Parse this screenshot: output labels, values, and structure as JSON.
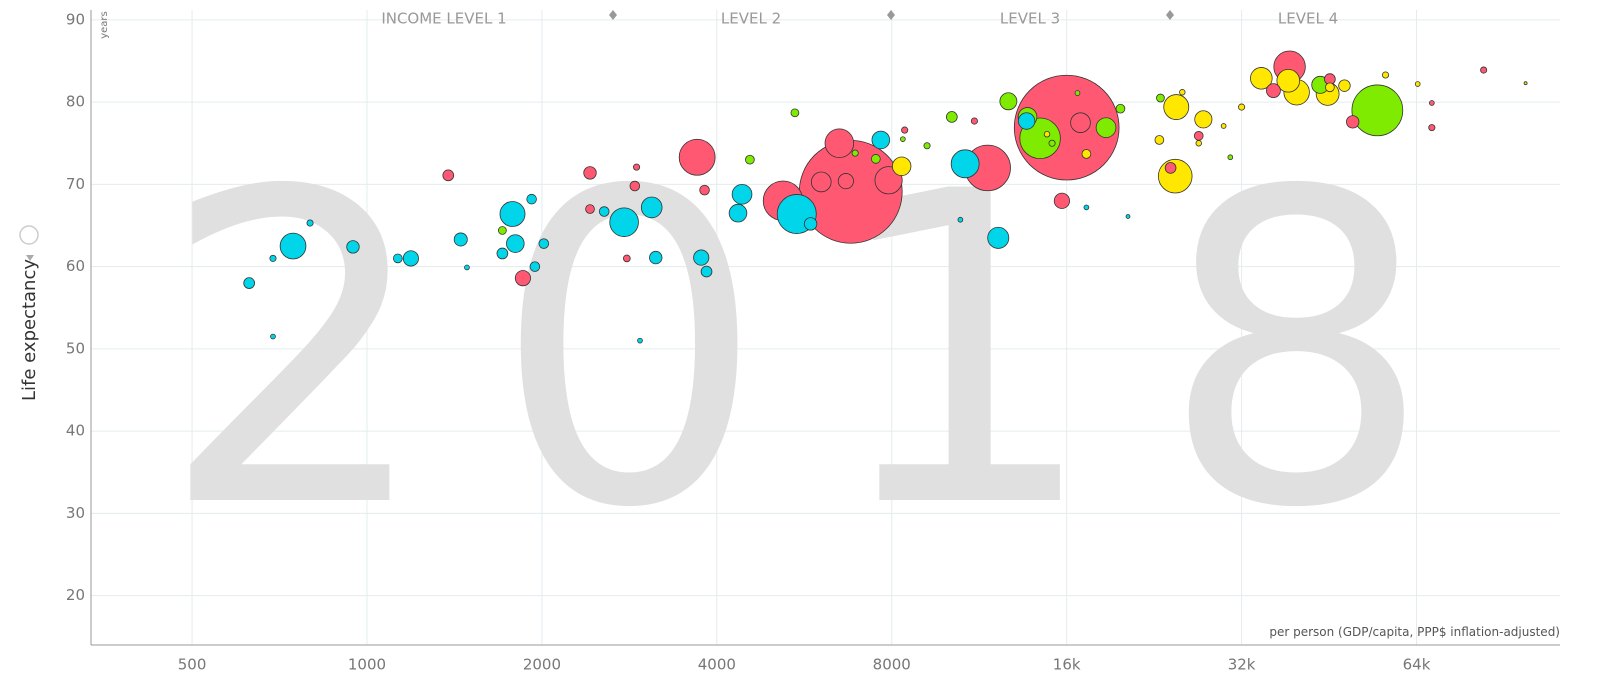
{
  "chart_data": {
    "type": "bubble",
    "big_label": "2018",
    "y_axis_label": "Life expectancy",
    "y_unit": "years",
    "x_axis_label": "per person (GDP/capita, PPP$ inflation-adjusted)",
    "annotations": [
      "INCOME LEVEL 1",
      "LEVEL 2",
      "LEVEL 3",
      "LEVEL 4"
    ],
    "x_log": true,
    "grid": true,
    "xlim": [
      335,
      113000
    ],
    "ylim": [
      14,
      91.2
    ],
    "xticks": [
      500,
      1000,
      2000,
      4000,
      8000,
      {
        "value": 16000,
        "label": "16k"
      },
      {
        "value": 32000,
        "label": "32k"
      },
      {
        "value": 64000,
        "label": "64k"
      }
    ],
    "yticks": [
      20,
      30,
      40,
      50,
      60,
      70,
      80,
      90
    ],
    "series": [
      {
        "color": "#ff5872",
        "x": [
          16000,
          6800,
          11700,
          5200,
          3700,
          6500,
          38700,
          7900,
          6050,
          6670,
          16900,
          36300,
          49700,
          45400,
          15700,
          1855,
          2420,
          1380,
          3810,
          2890,
          24150,
          27000,
          2420,
          2800,
          2910,
          68000,
          83500,
          11100,
          8420,
          68000
        ],
        "values": [
          76.9,
          69.1,
          72.0,
          68.0,
          73.3,
          75.0,
          84.3,
          70.5,
          70.3,
          70.4,
          77.5,
          81.4,
          77.6,
          82.8,
          68.0,
          58.6,
          71.4,
          71.1,
          69.3,
          69.8,
          72.0,
          75.9,
          67.0,
          61.0,
          72.1,
          76.9,
          83.9,
          77.7,
          76.6,
          79.9
        ],
        "sizes": [
          1400,
          1350,
          265,
          200,
          165,
          105,
          127,
          95,
          50,
          30,
          50,
          25,
          20,
          15,
          30,
          30,
          20,
          15,
          12,
          12,
          15,
          10,
          10,
          6,
          5,
          5,
          5,
          5,
          5,
          3
        ]
      },
      {
        "color": "#00d5e9",
        "x": [
          5490,
          10700,
          2770,
          1780,
          746,
          3090,
          4420,
          4350,
          12200,
          7660,
          1800,
          1190,
          3760,
          13650,
          1450,
          946,
          5800,
          3140,
          3840,
          627,
          1710,
          2560,
          2015,
          1920,
          1945,
          1130,
          689,
          689,
          798,
          17300,
          1486,
          2950,
          10500,
          20400
        ],
        "values": [
          66.4,
          72.5,
          65.4,
          66.4,
          62.5,
          67.2,
          68.8,
          66.5,
          63.5,
          75.4,
          62.8,
          61.0,
          61.1,
          77.7,
          63.3,
          62.4,
          65.2,
          61.1,
          59.4,
          58.0,
          61.6,
          66.7,
          62.8,
          68.2,
          60.0,
          61.0,
          61.0,
          51.5,
          65.3,
          67.2,
          59.9,
          51.0,
          65.7,
          66.1
        ],
        "sizes": [
          195,
          100,
          105,
          80,
          85,
          55,
          50,
          40,
          57,
          40,
          40,
          30,
          30,
          35,
          22,
          20,
          20,
          20,
          15,
          15,
          15,
          12,
          12,
          12,
          12,
          10,
          5,
          3,
          5,
          3,
          3,
          3,
          3,
          2
        ]
      },
      {
        "color": "#7feb00",
        "x": [
          54800,
          14400,
          18700,
          13700,
          12700,
          43700,
          10150,
          4560,
          7510,
          5450,
          19800,
          23200,
          1710,
          9200,
          6920,
          15100,
          8360,
          30600,
          16700
        ],
        "values": [
          79.0,
          75.6,
          76.9,
          78.2,
          80.1,
          82.1,
          78.2,
          73.0,
          73.1,
          78.7,
          79.2,
          80.5,
          64.4,
          74.7,
          73.8,
          75.0,
          75.5,
          73.3,
          81.1
        ],
        "sizes": [
          330,
          210,
          50,
          45,
          37,
          37,
          15,
          10,
          10,
          8,
          10,
          8,
          8,
          5,
          5,
          5,
          3,
          3,
          3
        ]
      },
      {
        "color": "#ffe700",
        "x": [
          24600,
          39800,
          24700,
          45000,
          34600,
          38500,
          8320,
          27500,
          48100,
          45400,
          23100,
          17300,
          32000,
          56600,
          27000,
          25300,
          64300,
          98600,
          29800,
          14800
        ],
        "values": [
          71.0,
          81.2,
          79.4,
          81.0,
          82.9,
          82.6,
          72.2,
          77.9,
          82.0,
          81.8,
          75.4,
          73.7,
          79.4,
          83.3,
          75.0,
          81.2,
          82.2,
          82.3,
          77.1,
          76.1
        ],
        "sizes": [
          145,
          83,
          80,
          67,
          60,
          66,
          44,
          38,
          17,
          10,
          10,
          10,
          5,
          5,
          4,
          4,
          3,
          1,
          3,
          4
        ]
      }
    ]
  }
}
